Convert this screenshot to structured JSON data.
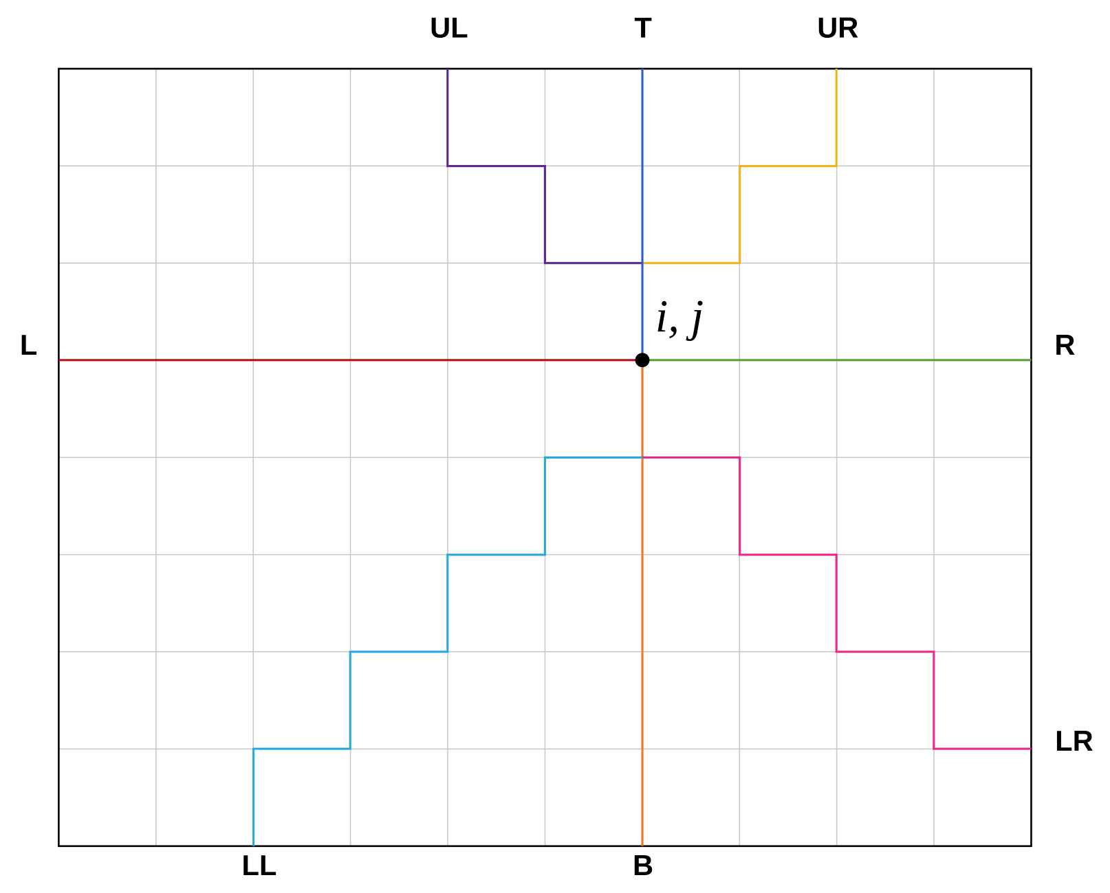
{
  "labels": {
    "upper_left": "UL",
    "top": "T",
    "upper_right": "UR",
    "left": "L",
    "right": "R",
    "lower_right": "LR",
    "lower_left": "LL",
    "bottom": "B",
    "point": "i, j"
  }
}
